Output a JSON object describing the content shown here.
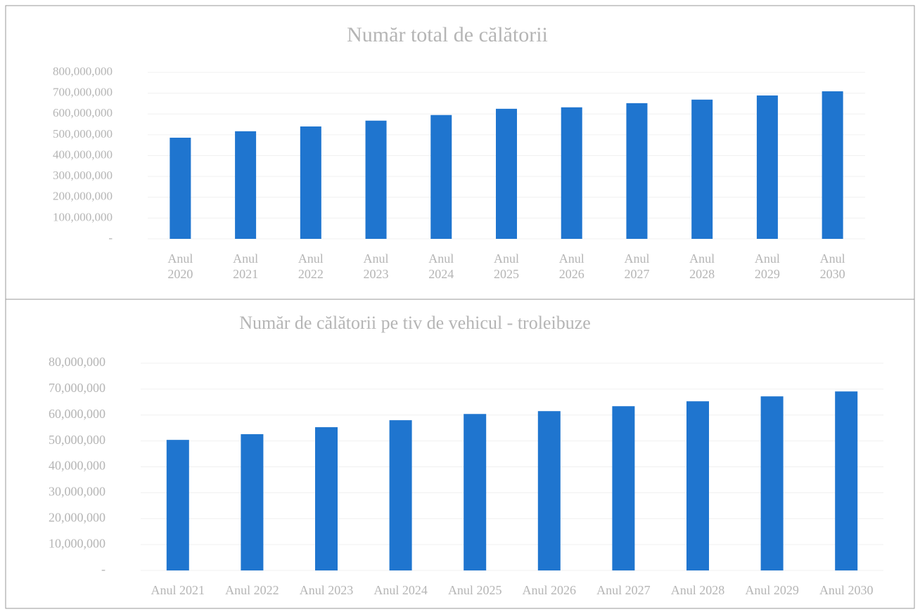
{
  "chart_data": [
    {
      "type": "bar",
      "title": "Număr total de călătorii",
      "categories": [
        "Anul 2020",
        "Anul 2021",
        "Anul 2022",
        "Anul 2023",
        "Anul 2024",
        "Anul 2025",
        "Anul 2026",
        "Anul 2027",
        "Anul 2028",
        "Anul 2029",
        "Anul 2030"
      ],
      "values": [
        486000000,
        517000000,
        540000000,
        568000000,
        595000000,
        625000000,
        632000000,
        652000000,
        669000000,
        689000000,
        709000000
      ],
      "color": "#1f75cf",
      "ylim": [
        0,
        800000000
      ],
      "yticks": [
        {
          "value": 0,
          "label": "-"
        },
        {
          "value": 100000000,
          "label": "100,000,000"
        },
        {
          "value": 200000000,
          "label": "200,000,000"
        },
        {
          "value": 300000000,
          "label": "300,000,000"
        },
        {
          "value": 400000000,
          "label": "400,000,000"
        },
        {
          "value": 500000000,
          "label": "500,000,000"
        },
        {
          "value": 600000000,
          "label": "600,000,000"
        },
        {
          "value": 700000000,
          "label": "700,000,000"
        },
        {
          "value": 800000000,
          "label": "800,000,000"
        }
      ],
      "grid": true
    },
    {
      "type": "bar",
      "title": "Număr de călătorii pe tiv de vehicul - troleibuze",
      "categories": [
        "Anul 2021",
        "Anul 2022",
        "Anul 2023",
        "Anul 2024",
        "Anul 2025",
        "Anul 2026",
        "Anul 2027",
        "Anul 2028",
        "Anul 2029",
        "Anul 2030"
      ],
      "values": [
        50400000,
        52600000,
        55300000,
        58000000,
        60400000,
        61500000,
        63400000,
        65300000,
        67200000,
        69100000
      ],
      "color": "#1f75cf",
      "ylim": [
        0,
        80000000
      ],
      "yticks": [
        {
          "value": 0,
          "label": "-"
        },
        {
          "value": 10000000,
          "label": "10,000,000"
        },
        {
          "value": 20000000,
          "label": "20,000,000"
        },
        {
          "value": 30000000,
          "label": "30,000,000"
        },
        {
          "value": 40000000,
          "label": "40,000,000"
        },
        {
          "value": 50000000,
          "label": "50,000,000"
        },
        {
          "value": 60000000,
          "label": "60,000,000"
        },
        {
          "value": 70000000,
          "label": "70,000,000"
        },
        {
          "value": 80000000,
          "label": "80,000,000"
        }
      ],
      "grid": true
    }
  ]
}
